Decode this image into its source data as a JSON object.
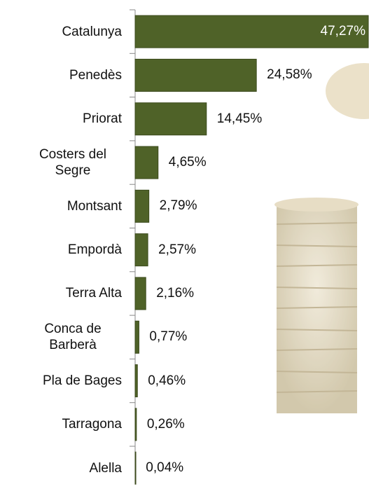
{
  "chart_data": {
    "type": "bar",
    "orientation": "horizontal",
    "color": "#4f6228",
    "categories": [
      "Catalunya",
      "Penedès",
      "Priorat",
      "Costers del Segre",
      "Montsant",
      "Empordà",
      "Terra Alta",
      "Conca de Barberà",
      "Pla de Bages",
      "Tarragona",
      "Alella"
    ],
    "values": [
      47.27,
      24.58,
      14.45,
      4.65,
      2.79,
      2.57,
      2.16,
      0.77,
      0.46,
      0.26,
      0.04
    ],
    "value_labels": [
      "47,27%",
      "24,58%",
      "14,45%",
      "4,65%",
      "2,79%",
      "2,57%",
      "2,16%",
      "0,77%",
      "0,46%",
      "0,26%",
      "0,04%"
    ]
  }
}
